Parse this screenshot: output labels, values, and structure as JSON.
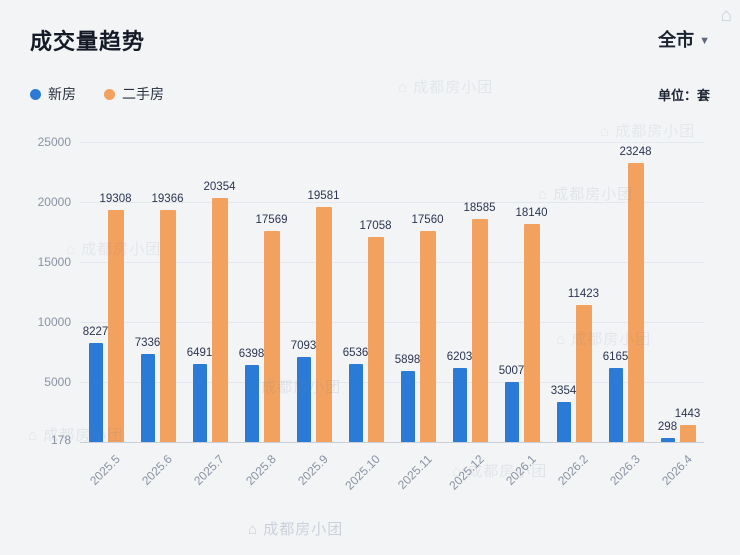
{
  "header": {
    "title": "成交量趋势",
    "city_selector": "全市"
  },
  "legend": {
    "items": [
      {
        "label": "新房",
        "color": "#2b7bd6"
      },
      {
        "label": "二手房",
        "color": "#f2a express15e"
      }
    ],
    "unit_label": "单位：套"
  },
  "watermark": {
    "text": "成都房小团",
    "icon": "⌂"
  },
  "chart_data": {
    "type": "bar",
    "title": "成交量趋势",
    "categories": [
      "2025.5",
      "2025.6",
      "2025.7",
      "2025.8",
      "2025.9",
      "2025.10",
      "2025.11",
      "2025.12",
      "2026.1",
      "2026.2",
      "2026.3",
      "2026.4"
    ],
    "series": [
      {
        "name": "新房",
        "color": "#2b7bd6",
        "values": [
          8227,
          7336,
          6491,
          6398,
          7093,
          6536,
          5898,
          6203,
          5007,
          3354,
          6165,
          298
        ]
      },
      {
        "name": "二手房",
        "color": "#f2a15e",
        "values": [
          19308,
          19366,
          20354,
          17569,
          19581,
          17058,
          17560,
          18585,
          18140,
          11423,
          23248,
          1443
        ]
      }
    ],
    "xlabel": "",
    "ylabel": "",
    "unit": "套",
    "y_ticks": [
      178,
      5000,
      10000,
      15000,
      20000,
      25000
    ],
    "ylim": [
      0,
      25000
    ],
    "grid": true,
    "legend_position": "top-left"
  }
}
